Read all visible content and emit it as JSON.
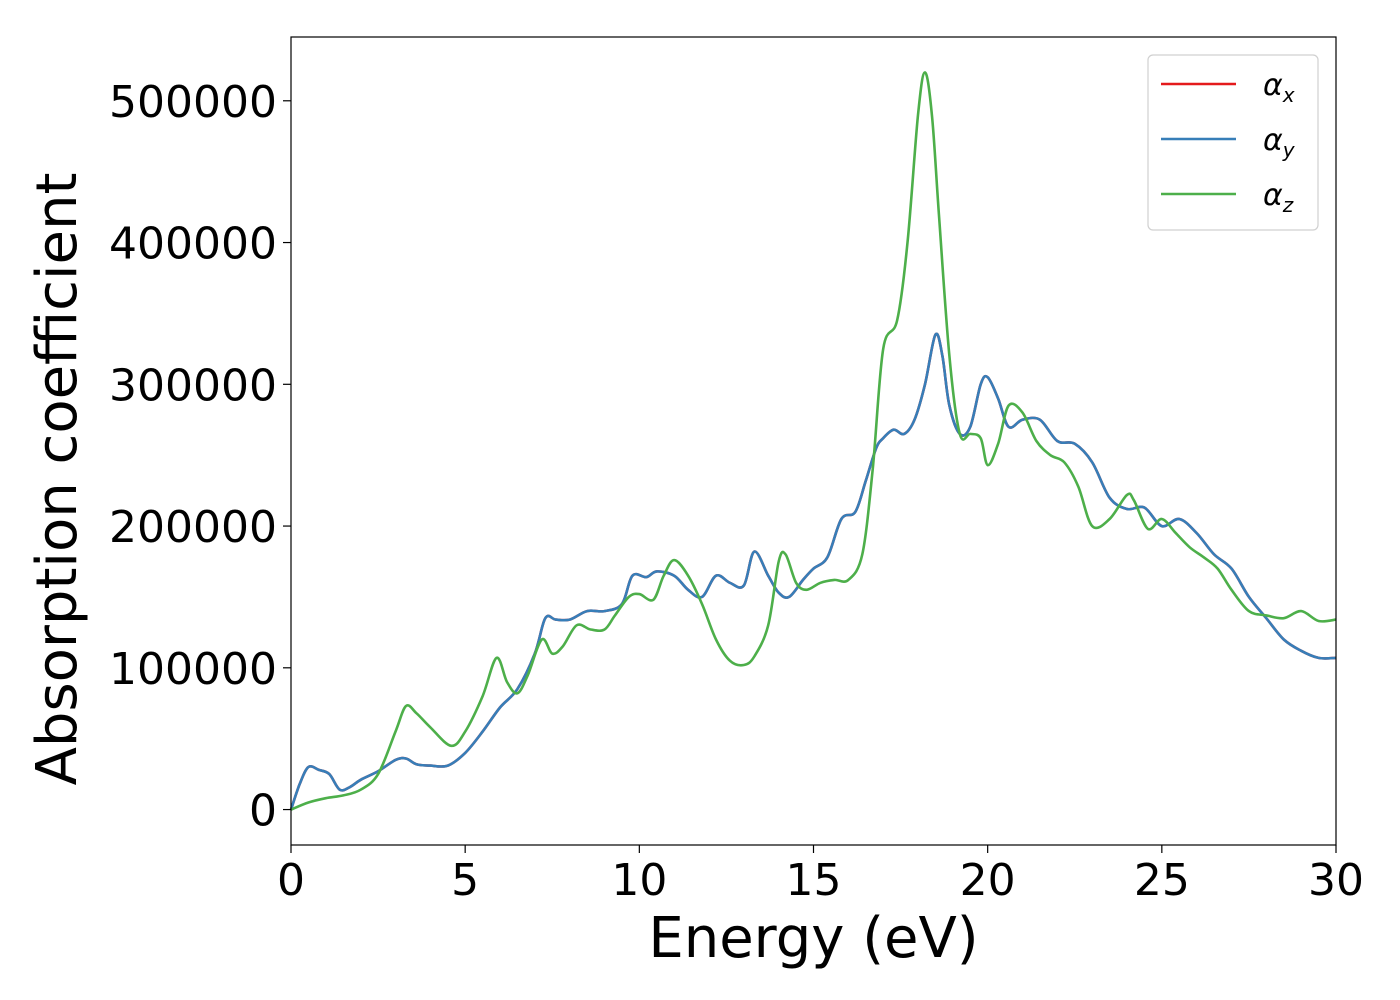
{
  "chart_data": {
    "type": "line",
    "title": "",
    "xlabel": "Energy (eV)",
    "ylabel": "Absorption coefficient",
    "xlim": [
      0,
      30
    ],
    "ylim": [
      -25000,
      545000
    ],
    "xticks": [
      0,
      5,
      10,
      15,
      20,
      25,
      30
    ],
    "xtick_labels": [
      "0",
      "5",
      "10",
      "15",
      "20",
      "25",
      "30"
    ],
    "yticks": [
      0,
      100000,
      200000,
      300000,
      400000,
      500000
    ],
    "ytick_labels": [
      "0",
      "100000",
      "200000",
      "300000",
      "400000",
      "500000"
    ],
    "grid": false,
    "legend_position": "top-right",
    "series": [
      {
        "name": "α",
        "subscript": "x",
        "color": "#e41a1c",
        "x": [
          0,
          0.25,
          0.5,
          0.8,
          1.1,
          1.4,
          1.7,
          2.0,
          2.5,
          3.0,
          3.3,
          3.6,
          4.0,
          4.5,
          5.0,
          5.5,
          6.0,
          6.5,
          7.0,
          7.3,
          7.6,
          8.0,
          8.5,
          9.0,
          9.5,
          9.8,
          10.2,
          10.5,
          11.0,
          11.4,
          11.8,
          12.2,
          12.6,
          13.0,
          13.3,
          13.7,
          14.0,
          14.3,
          14.7,
          15.0,
          15.4,
          15.8,
          16.2,
          16.5,
          16.8,
          17.0,
          17.3,
          17.6,
          17.9,
          18.2,
          18.5,
          18.7,
          18.9,
          19.2,
          19.5,
          19.8,
          20.0,
          20.3,
          20.6,
          21.0,
          21.5,
          22.0,
          22.5,
          23.0,
          23.5,
          24.0,
          24.5,
          25.0,
          25.5,
          26.0,
          26.5,
          27.0,
          27.5,
          28.0,
          28.5,
          29.0,
          29.5,
          30.0
        ],
        "values": [
          0,
          18000,
          30000,
          28000,
          25000,
          14000,
          16000,
          21000,
          27000,
          35000,
          36000,
          32000,
          31000,
          31000,
          40000,
          55000,
          72000,
          85000,
          110000,
          135000,
          134000,
          134000,
          140000,
          140000,
          145000,
          165000,
          164000,
          168000,
          165000,
          155000,
          150000,
          165000,
          160000,
          158000,
          182000,
          165000,
          153000,
          150000,
          162000,
          170000,
          178000,
          205000,
          210000,
          232000,
          255000,
          262000,
          268000,
          265000,
          275000,
          300000,
          335000,
          320000,
          285000,
          265000,
          270000,
          300000,
          305000,
          290000,
          270000,
          275000,
          275000,
          260000,
          258000,
          245000,
          220000,
          212000,
          213000,
          200000,
          205000,
          195000,
          180000,
          170000,
          150000,
          135000,
          120000,
          112000,
          107000,
          107000
        ]
      },
      {
        "name": "α",
        "subscript": "y",
        "color": "#377eb8",
        "x": [
          0,
          0.25,
          0.5,
          0.8,
          1.1,
          1.4,
          1.7,
          2.0,
          2.5,
          3.0,
          3.3,
          3.6,
          4.0,
          4.5,
          5.0,
          5.5,
          6.0,
          6.5,
          7.0,
          7.3,
          7.6,
          8.0,
          8.5,
          9.0,
          9.5,
          9.8,
          10.2,
          10.5,
          11.0,
          11.4,
          11.8,
          12.2,
          12.6,
          13.0,
          13.3,
          13.7,
          14.0,
          14.3,
          14.7,
          15.0,
          15.4,
          15.8,
          16.2,
          16.5,
          16.8,
          17.0,
          17.3,
          17.6,
          17.9,
          18.2,
          18.5,
          18.7,
          18.9,
          19.2,
          19.5,
          19.8,
          20.0,
          20.3,
          20.6,
          21.0,
          21.5,
          22.0,
          22.5,
          23.0,
          23.5,
          24.0,
          24.5,
          25.0,
          25.5,
          26.0,
          26.5,
          27.0,
          27.5,
          28.0,
          28.5,
          29.0,
          29.5,
          30.0
        ],
        "values": [
          0,
          18000,
          30000,
          28000,
          25000,
          14000,
          16000,
          21000,
          27000,
          35000,
          36000,
          32000,
          31000,
          31000,
          40000,
          55000,
          72000,
          85000,
          110000,
          135000,
          134000,
          134000,
          140000,
          140000,
          145000,
          165000,
          164000,
          168000,
          165000,
          155000,
          150000,
          165000,
          160000,
          158000,
          182000,
          165000,
          153000,
          150000,
          162000,
          170000,
          178000,
          205000,
          210000,
          232000,
          255000,
          262000,
          268000,
          265000,
          275000,
          300000,
          335000,
          320000,
          285000,
          265000,
          270000,
          300000,
          305000,
          290000,
          270000,
          275000,
          275000,
          260000,
          258000,
          245000,
          220000,
          212000,
          213000,
          200000,
          205000,
          195000,
          180000,
          170000,
          150000,
          135000,
          120000,
          112000,
          107000,
          107000
        ]
      },
      {
        "name": "α",
        "subscript": "z",
        "color": "#4daf4a",
        "x": [
          0,
          0.5,
          1.0,
          1.5,
          2.0,
          2.5,
          3.0,
          3.3,
          3.6,
          4.0,
          4.6,
          5.0,
          5.5,
          5.9,
          6.2,
          6.5,
          6.8,
          7.2,
          7.5,
          7.8,
          8.2,
          8.6,
          9.0,
          9.3,
          9.7,
          10.0,
          10.4,
          10.7,
          11.0,
          11.4,
          11.8,
          12.2,
          12.6,
          13.0,
          13.3,
          13.7,
          14.0,
          14.2,
          14.5,
          14.8,
          15.2,
          15.6,
          16.0,
          16.4,
          16.7,
          17.0,
          17.4,
          17.7,
          18.0,
          18.2,
          18.4,
          18.6,
          18.9,
          19.2,
          19.5,
          19.8,
          20.0,
          20.3,
          20.6,
          21.0,
          21.4,
          21.8,
          22.2,
          22.6,
          23.0,
          23.5,
          24.0,
          24.2,
          24.6,
          25.0,
          25.4,
          25.8,
          26.2,
          26.6,
          27.0,
          27.5,
          28.0,
          28.5,
          29.0,
          29.5,
          30.0
        ],
        "values": [
          0,
          5000,
          8000,
          10000,
          14000,
          25000,
          55000,
          73000,
          68000,
          58000,
          45000,
          55000,
          80000,
          107000,
          90000,
          82000,
          95000,
          120000,
          110000,
          115000,
          130000,
          127000,
          127000,
          137000,
          150000,
          152000,
          148000,
          165000,
          176000,
          165000,
          145000,
          120000,
          105000,
          102000,
          108000,
          130000,
          175000,
          180000,
          160000,
          155000,
          160000,
          162000,
          162000,
          180000,
          240000,
          325000,
          345000,
          400000,
          490000,
          520000,
          490000,
          420000,
          320000,
          265000,
          265000,
          262000,
          243000,
          258000,
          285000,
          280000,
          260000,
          250000,
          245000,
          228000,
          200000,
          205000,
          222000,
          218000,
          198000,
          205000,
          195000,
          185000,
          178000,
          170000,
          155000,
          140000,
          137000,
          135000,
          140000,
          133000,
          134000
        ]
      }
    ]
  }
}
